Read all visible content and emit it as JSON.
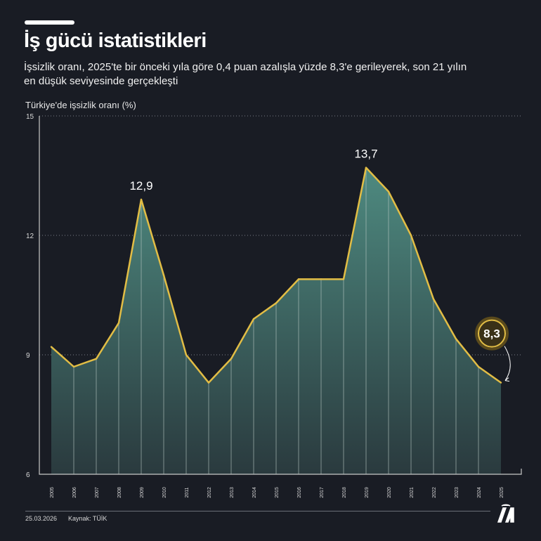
{
  "header": {
    "title": "İş gücü istatistikleri",
    "subtitle": "İşsizlik oranı, 2025'te bir önceki yıla göre 0,4 puan azalışla yüzde 8,3'e gerileyerek, son 21 yılın en düşük seviyesinde gerçekleşti"
  },
  "chart_data": {
    "type": "area",
    "ylabel": "Türkiye'de işsizlik oranı (%)",
    "ylim": [
      6,
      15
    ],
    "yticks": [
      6,
      9,
      12,
      15
    ],
    "grid": "dotted horizontal",
    "categories": [
      "2005",
      "2006",
      "2007",
      "2008",
      "2009",
      "2010",
      "2011",
      "2012",
      "2013",
      "2014",
      "2015",
      "2016",
      "2017",
      "2018",
      "2019",
      "2020",
      "2021",
      "2022",
      "2023",
      "2024",
      "2025"
    ],
    "values": [
      9.2,
      8.7,
      8.9,
      9.8,
      12.9,
      11.0,
      9.0,
      8.3,
      8.9,
      9.9,
      10.3,
      10.9,
      10.9,
      10.9,
      13.7,
      13.1,
      12.0,
      10.4,
      9.4,
      8.7,
      8.3
    ],
    "annotations": [
      {
        "year": "2009",
        "label": "12,9"
      },
      {
        "year": "2019",
        "label": "13,7"
      },
      {
        "year": "2025",
        "label": "8,3",
        "highlight": true
      }
    ],
    "colors": {
      "line": "#e2bd45",
      "fill_top": "#4e8a80",
      "fill_bottom": "#2a3a3e",
      "background": "#191c24"
    }
  },
  "footer": {
    "date": "25.03.2026",
    "source": "Kaynak: TÜİK",
    "logo_text": "AA"
  }
}
